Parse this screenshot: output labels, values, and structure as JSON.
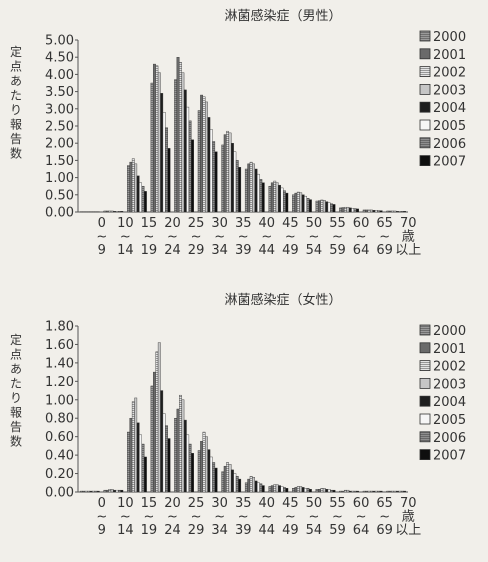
{
  "chart_data": [
    {
      "type": "bar",
      "title": "淋菌感染症（男性）",
      "ylabel": "定点あたり報告数",
      "ylim": [
        0,
        5
      ],
      "yticks": [
        "5.00",
        "4.50",
        "4.00",
        "3.50",
        "3.00",
        "2.50",
        "2.00",
        "1.50",
        "1.00",
        "0.50",
        "0.00"
      ],
      "categories": [
        "0~9",
        "10~14",
        "15~19",
        "20~24",
        "25~29",
        "30~34",
        "35~39",
        "40~44",
        "45~49",
        "50~54",
        "55~59",
        "60~64",
        "65~69",
        "70歳以上"
      ],
      "legend_position": "right",
      "series": [
        {
          "name": "2000",
          "values": [
            0.01,
            0.03,
            1.35,
            3.75,
            3.85,
            2.95,
            1.95,
            1.25,
            0.75,
            0.5,
            0.32,
            0.12,
            0.06,
            0.03
          ]
        },
        {
          "name": "2001",
          "values": [
            0.01,
            0.03,
            1.45,
            4.3,
            4.5,
            3.4,
            2.25,
            1.4,
            0.85,
            0.55,
            0.33,
            0.13,
            0.06,
            0.03
          ]
        },
        {
          "name": "2002",
          "values": [
            0.01,
            0.03,
            1.55,
            4.25,
            4.35,
            3.35,
            2.35,
            1.45,
            0.9,
            0.58,
            0.35,
            0.14,
            0.06,
            0.03
          ]
        },
        {
          "name": "2003",
          "values": [
            0.01,
            0.03,
            1.4,
            4.05,
            4.05,
            3.2,
            2.3,
            1.4,
            0.85,
            0.56,
            0.34,
            0.14,
            0.06,
            0.03
          ]
        },
        {
          "name": "2004",
          "values": [
            0.01,
            0.02,
            1.05,
            3.45,
            3.55,
            2.75,
            2.0,
            1.25,
            0.78,
            0.5,
            0.3,
            0.12,
            0.05,
            0.02
          ]
        },
        {
          "name": "2005",
          "values": [
            0.01,
            0.02,
            0.85,
            2.9,
            3.05,
            2.4,
            1.75,
            1.1,
            0.7,
            0.46,
            0.27,
            0.11,
            0.05,
            0.02
          ]
        },
        {
          "name": "2006",
          "values": [
            0.01,
            0.02,
            0.75,
            2.45,
            2.65,
            2.05,
            1.5,
            0.95,
            0.62,
            0.4,
            0.24,
            0.1,
            0.04,
            0.02
          ]
        },
        {
          "name": "2007",
          "values": [
            0.01,
            0.02,
            0.6,
            1.85,
            2.1,
            1.75,
            1.3,
            0.85,
            0.55,
            0.36,
            0.22,
            0.09,
            0.04,
            0.02
          ]
        }
      ]
    },
    {
      "type": "bar",
      "title": "淋菌感染症（女性）",
      "ylabel": "定点あたり報告数",
      "ylim": [
        0,
        1.8
      ],
      "yticks": [
        "1.80",
        "1.60",
        "1.40",
        "1.20",
        "1.00",
        "0.80",
        "0.60",
        "0.40",
        "0.20",
        "0.00"
      ],
      "categories": [
        "0~9",
        "10~14",
        "15~19",
        "20~24",
        "25~29",
        "30~34",
        "35~39",
        "40~44",
        "45~49",
        "50~54",
        "55~59",
        "60~64",
        "65~69",
        "70歳以上"
      ],
      "legend_position": "right",
      "series": [
        {
          "name": "2000",
          "values": [
            0.01,
            0.02,
            0.65,
            1.15,
            0.8,
            0.45,
            0.22,
            0.1,
            0.06,
            0.04,
            0.03,
            0.01,
            0.01,
            0.01
          ]
        },
        {
          "name": "2001",
          "values": [
            0.01,
            0.02,
            0.8,
            1.3,
            0.9,
            0.55,
            0.28,
            0.14,
            0.07,
            0.05,
            0.03,
            0.01,
            0.01,
            0.01
          ]
        },
        {
          "name": "2002",
          "values": [
            0.01,
            0.03,
            0.98,
            1.52,
            1.05,
            0.65,
            0.32,
            0.17,
            0.08,
            0.06,
            0.04,
            0.02,
            0.01,
            0.01
          ]
        },
        {
          "name": "2003",
          "values": [
            0.01,
            0.03,
            1.02,
            1.62,
            1.0,
            0.6,
            0.3,
            0.16,
            0.08,
            0.06,
            0.04,
            0.02,
            0.01,
            0.01
          ]
        },
        {
          "name": "2004",
          "values": [
            0.01,
            0.02,
            0.75,
            1.1,
            0.78,
            0.46,
            0.24,
            0.12,
            0.07,
            0.05,
            0.03,
            0.01,
            0.01,
            0.01
          ]
        },
        {
          "name": "2005",
          "values": [
            0.01,
            0.02,
            0.62,
            0.85,
            0.62,
            0.38,
            0.2,
            0.1,
            0.06,
            0.04,
            0.03,
            0.01,
            0.01,
            0.01
          ]
        },
        {
          "name": "2006",
          "values": [
            0.01,
            0.02,
            0.52,
            0.72,
            0.52,
            0.32,
            0.17,
            0.09,
            0.05,
            0.04,
            0.02,
            0.01,
            0.01,
            0.01
          ]
        },
        {
          "name": "2007",
          "values": [
            0.01,
            0.02,
            0.38,
            0.58,
            0.42,
            0.26,
            0.14,
            0.07,
            0.04,
            0.03,
            0.02,
            0.01,
            0.01,
            0.01
          ]
        }
      ]
    }
  ],
  "series_colors": [
    "#9a9a9a",
    "#6a6a6a",
    "#e4e4e4",
    "#c6c6c6",
    "#1e1e1e",
    "#f6f6f6",
    "#8e8e8e",
    "#0f0f0f"
  ],
  "series_hatch": [
    true,
    false,
    true,
    false,
    false,
    false,
    true,
    false
  ]
}
